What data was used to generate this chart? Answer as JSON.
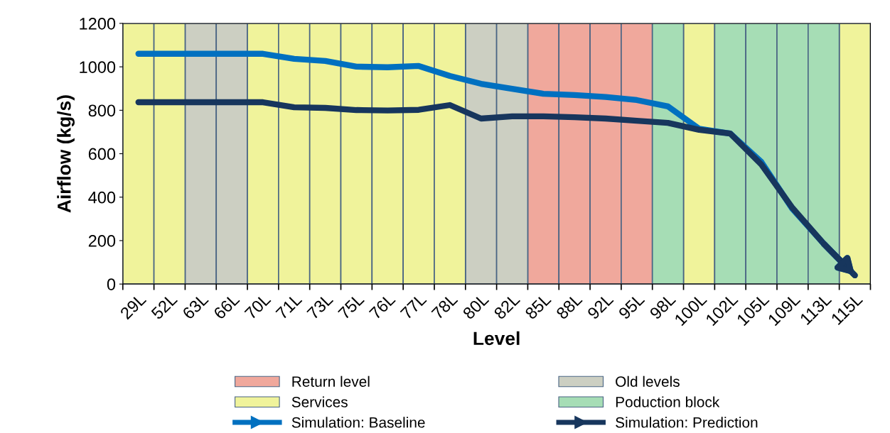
{
  "chart_data": {
    "type": "line",
    "xlabel": "Level",
    "ylabel": "Airflow (kg/s)",
    "categories": [
      "29L",
      "52L",
      "63L",
      "66L",
      "70L",
      "71L",
      "73L",
      "75L",
      "76L",
      "77L",
      "78L",
      "80L",
      "82L",
      "85L",
      "88L",
      "92L",
      "95L",
      "98L",
      "100L",
      "102L",
      "105L",
      "109L",
      "113L",
      "115L"
    ],
    "series": [
      {
        "name": "Return level",
        "type": "bar",
        "color": "#f0a89c",
        "values": [
          null,
          null,
          null,
          null,
          null,
          null,
          null,
          null,
          null,
          null,
          null,
          null,
          null,
          1200,
          1200,
          1200,
          1200,
          null,
          null,
          null,
          null,
          null,
          null,
          null
        ]
      },
      {
        "name": "Old levels",
        "type": "bar",
        "color": "#cccfc2",
        "values": [
          null,
          null,
          1200,
          1200,
          null,
          null,
          null,
          null,
          null,
          null,
          null,
          1200,
          1200,
          null,
          null,
          null,
          null,
          null,
          null,
          null,
          null,
          null,
          null,
          null
        ]
      },
      {
        "name": "Services",
        "type": "bar",
        "color": "#f0f39b",
        "values": [
          1200,
          1200,
          null,
          null,
          1200,
          1200,
          1200,
          1200,
          1200,
          1200,
          1200,
          null,
          null,
          null,
          null,
          null,
          null,
          null,
          1200,
          null,
          null,
          null,
          null,
          1200
        ]
      },
      {
        "name": "Poduction block",
        "type": "bar",
        "color": "#a6ddb5",
        "values": [
          null,
          null,
          null,
          null,
          null,
          null,
          null,
          null,
          null,
          null,
          null,
          null,
          null,
          null,
          null,
          null,
          null,
          1200,
          null,
          1200,
          1200,
          1200,
          1200,
          null
        ]
      },
      {
        "name": "Simulation: Baseline",
        "color": "#0070c0",
        "values": [
          1060,
          1060,
          1060,
          1060,
          1060,
          1037,
          1027,
          1001,
          998,
          1004,
          958,
          922,
          899,
          876,
          870,
          861,
          847,
          818,
          715,
          693,
          562,
          345,
          186,
          40
        ]
      },
      {
        "name": "Simulation: Prediction",
        "color": "#17365d",
        "values": [
          837,
          837,
          837,
          837,
          837,
          814,
          811,
          801,
          799,
          802,
          824,
          762,
          772,
          772,
          768,
          762,
          752,
          742,
          710,
          693,
          550,
          350,
          186,
          40
        ]
      }
    ],
    "ylim": [
      0,
      1200
    ],
    "yticks": [
      0,
      200,
      400,
      600,
      800,
      1000,
      1200
    ],
    "grid": false,
    "legend": "bottom",
    "marker": "none",
    "line_style": "solid"
  }
}
